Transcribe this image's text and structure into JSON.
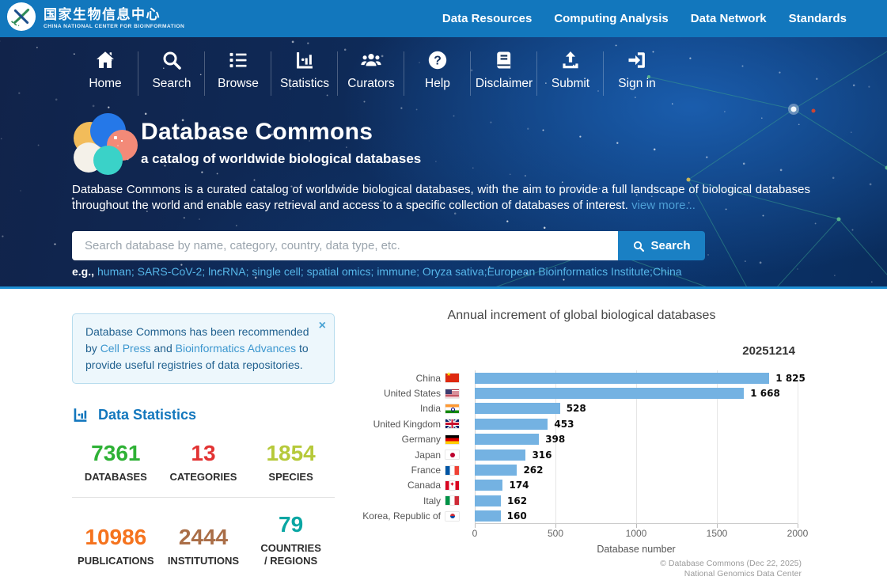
{
  "topbar": {
    "logo": {
      "title_zh": "国家生物信息中心",
      "subtitle_en": "CHINA NATIONAL CENTER FOR BIOINFORMATION"
    },
    "nav": [
      "Data Resources",
      "Computing Analysis",
      "Data Network",
      "Standards"
    ]
  },
  "hero": {
    "menu": [
      "Home",
      "Search",
      "Browse",
      "Statistics",
      "Curators",
      "Help",
      "Disclaimer",
      "Submit",
      "Sign in"
    ],
    "title": "Database Commons",
    "subtitle": "a catalog of worldwide biological databases",
    "description": "Database Commons is a curated catalog of worldwide biological databases, with the aim to provide a full landscape of biological databases throughout the world and enable easy retrieval and access to a specific collection of databases of interest.",
    "view_more_label": "view more...",
    "search": {
      "placeholder": "Search database by name, category, country, data type, etc.",
      "button_label": "Search"
    },
    "examples_prefix": "e.g.,",
    "examples": [
      "human",
      "SARS-CoV-2",
      "lncRNA",
      "single cell",
      "spatial omics",
      "immune",
      "Oryza sativa",
      "European Bioinformatics Institute",
      "China"
    ]
  },
  "notice": {
    "text_1": "Database Commons has been recommended by ",
    "link_1": "Cell Press",
    "text_2": " and ",
    "link_2": "Bioinformatics Advances",
    "text_3": " to provide useful registries of data repositories.",
    "close_label": "×"
  },
  "stats": {
    "header": "Data Statistics",
    "items": [
      {
        "value": "7361",
        "label": "DATABASES",
        "color": "#2eb135"
      },
      {
        "value": "13",
        "label": "CATEGORIES",
        "color": "#e23333"
      },
      {
        "value": "1854",
        "label": "SPECIES",
        "color": "#b6c93a"
      },
      {
        "value": "10986",
        "label": "PUBLICATIONS",
        "color": "#f5731e"
      },
      {
        "value": "2444",
        "label": "INSTITUTIONS",
        "color": "#aa6e47"
      },
      {
        "value": "79",
        "label": "COUNTRIES\n/ REGIONS",
        "color": "#09a6a3"
      }
    ]
  },
  "chart_data": {
    "type": "bar",
    "orientation": "horizontal",
    "title": "Annual increment of global biological databases",
    "date_label": "20251214",
    "categories": [
      "China",
      "United States",
      "India",
      "United Kingdom",
      "Germany",
      "Japan",
      "France",
      "Canada",
      "Italy",
      "Korea, Republic of"
    ],
    "values": [
      1825,
      1668,
      528,
      453,
      398,
      316,
      262,
      174,
      162,
      160
    ],
    "value_labels": [
      "1 825",
      "1 668",
      "528",
      "453",
      "398",
      "316",
      "262",
      "174",
      "162",
      "160"
    ],
    "flags": [
      "cn",
      "us",
      "in",
      "gb",
      "de",
      "jp",
      "fr",
      "ca",
      "it",
      "kr"
    ],
    "xlabel": "Database number",
    "xlim": [
      0,
      2000
    ],
    "xticks": [
      0,
      500,
      1000,
      1500,
      2000
    ],
    "bar_color": "#74b2e2",
    "grid": true,
    "legend": false,
    "credit_line_1": "© Database Commons (Dec 22, 2025)",
    "credit_line_2": "National Genomics Data Center"
  }
}
